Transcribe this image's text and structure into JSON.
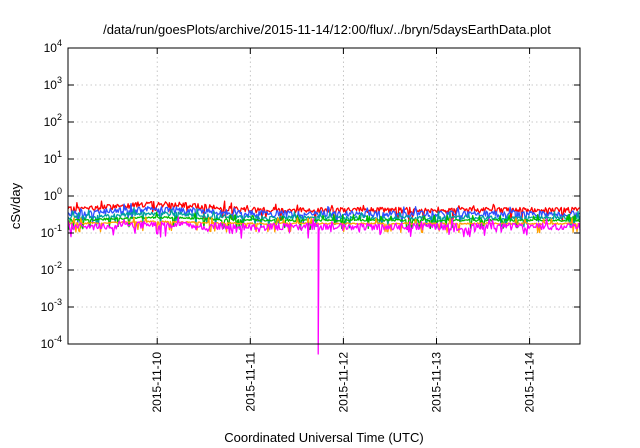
{
  "chart_data": {
    "type": "line",
    "title": "/data/run/goesPlots/archive/2015-11-14/12:00/flux/../bryn/5daysEarthData.plot",
    "xlabel": "Coordinated Universal Time (UTC)",
    "ylabel": "cSv/day",
    "yscale": "log",
    "ylim_exponents": [
      -4,
      4
    ],
    "y_ticks": [
      {
        "base": "10",
        "exp": "4"
      },
      {
        "base": "10",
        "exp": "3"
      },
      {
        "base": "10",
        "exp": "2"
      },
      {
        "base": "10",
        "exp": "1"
      },
      {
        "base": "10",
        "exp": "0"
      },
      {
        "base": "10",
        "exp": "-1"
      },
      {
        "base": "10",
        "exp": "-2"
      },
      {
        "base": "10",
        "exp": "-3"
      },
      {
        "base": "10",
        "exp": "-4"
      }
    ],
    "x_range_days": [
      "2015-11-09T01:00",
      "2015-11-14T13:00"
    ],
    "x_ticks": [
      "2015-11-10",
      "2015-11-11",
      "2015-11-12",
      "2015-11-13",
      "2015-11-14"
    ],
    "grid": true,
    "legend": "none",
    "series": [
      {
        "color": "#ff0000",
        "baseline": 0.42,
        "bump": 0.45,
        "spread": 0.35
      },
      {
        "color": "#2b50ff",
        "baseline": 0.33,
        "bump": 0.35,
        "spread": 0.4
      },
      {
        "color": "#00a0a0",
        "baseline": 0.26,
        "bump": 0.3,
        "spread": 0.25
      },
      {
        "color": "#00bb00",
        "baseline": 0.22,
        "bump": 0.2,
        "spread": 0.12
      },
      {
        "color": "#ffa000",
        "baseline": 0.18,
        "bump": 0.12,
        "spread": 0.1
      },
      {
        "color": "#ff00ff",
        "baseline": 0.15,
        "bump": 0.1,
        "spread": 0.45,
        "dropout": {
          "x": "2015-11-11T17:30",
          "y": 0.0001
        }
      }
    ]
  }
}
